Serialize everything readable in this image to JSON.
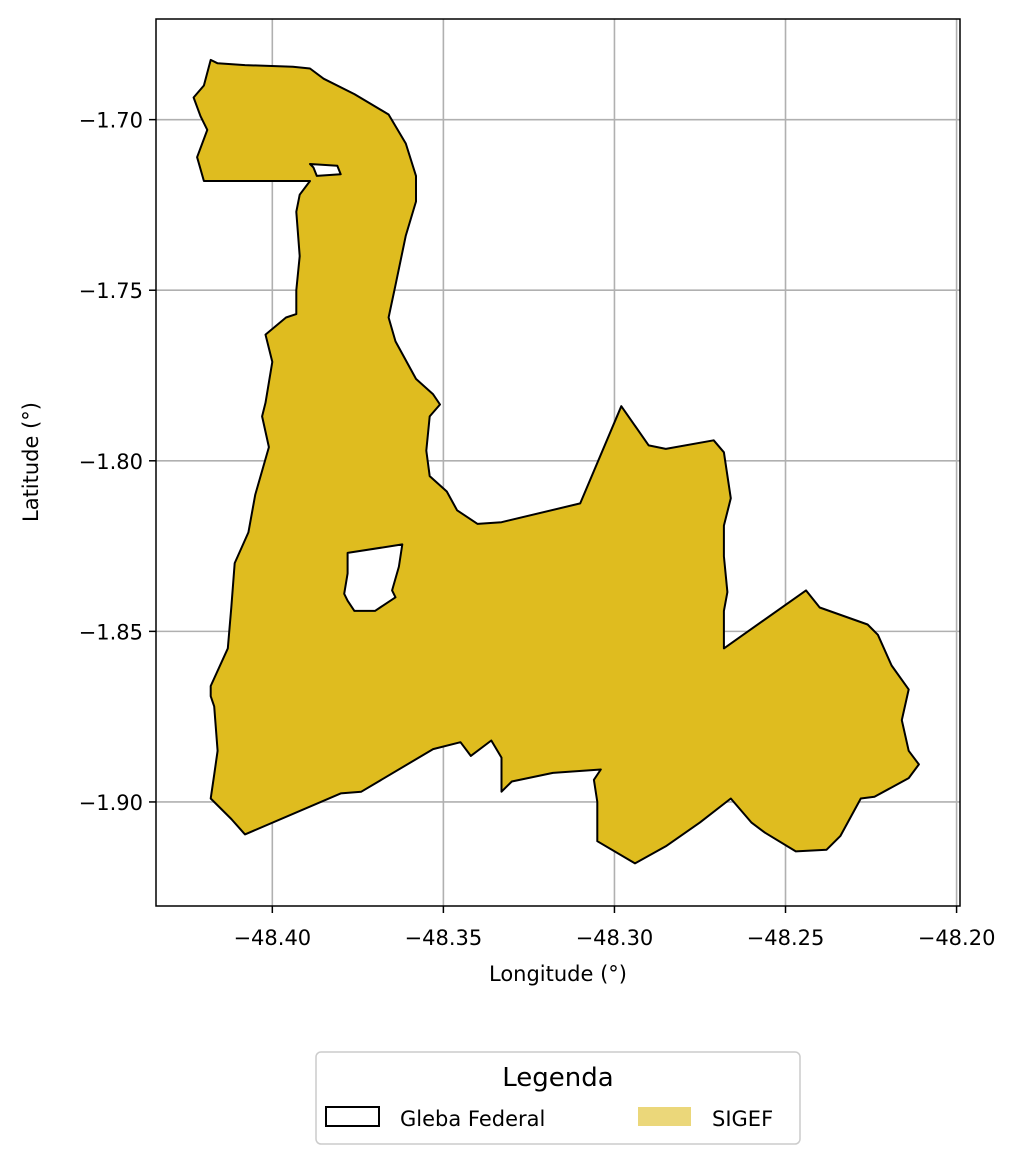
{
  "chart_data": {
    "type": "map",
    "xlabel": "Longitude (°)",
    "ylabel": "Latitude (°)",
    "xlim": [
      -48.434,
      -48.199
    ],
    "ylim": [
      -1.9305,
      -1.6705
    ],
    "grid": true,
    "x_ticks": [
      {
        "value": -48.4,
        "label": "−48.40"
      },
      {
        "value": -48.35,
        "label": "−48.35"
      },
      {
        "value": -48.3,
        "label": "−48.30"
      },
      {
        "value": -48.25,
        "label": "−48.25"
      },
      {
        "value": -48.2,
        "label": "−48.20"
      }
    ],
    "y_ticks": [
      {
        "value": -1.7,
        "label": "−1.70"
      },
      {
        "value": -1.75,
        "label": "−1.75"
      },
      {
        "value": -1.8,
        "label": "−1.80"
      },
      {
        "value": -1.85,
        "label": "−1.85"
      },
      {
        "value": -1.9,
        "label": "−1.90"
      }
    ],
    "legend": {
      "title": "Legenda",
      "placement": "bottom-center",
      "entries": [
        {
          "label": "Gleba Federal",
          "style": "outline",
          "edge_color": "#000000",
          "fill_color": "#ffffff"
        },
        {
          "label": "SIGEF",
          "style": "fill",
          "fill_color": "#ebd77a"
        }
      ]
    },
    "layers": [
      {
        "name": "SIGEF",
        "fill_color": "#dfbc1f",
        "edge_color": "#000000",
        "outer": [
          [
            -48.418,
            -1.6825
          ],
          [
            -48.416,
            -1.6835
          ],
          [
            -48.408,
            -1.684
          ],
          [
            -48.394,
            -1.6845
          ],
          [
            -48.389,
            -1.685
          ],
          [
            -48.385,
            -1.688
          ],
          [
            -48.376,
            -1.6925
          ],
          [
            -48.366,
            -1.6985
          ],
          [
            -48.361,
            -1.707
          ],
          [
            -48.358,
            -1.7165
          ],
          [
            -48.358,
            -1.724
          ],
          [
            -48.361,
            -1.734
          ],
          [
            -48.364,
            -1.7485
          ],
          [
            -48.366,
            -1.758
          ],
          [
            -48.364,
            -1.765
          ],
          [
            -48.358,
            -1.776
          ],
          [
            -48.353,
            -1.7805
          ],
          [
            -48.351,
            -1.7835
          ],
          [
            -48.354,
            -1.787
          ],
          [
            -48.355,
            -1.797
          ],
          [
            -48.354,
            -1.8045
          ],
          [
            -48.349,
            -1.809
          ],
          [
            -48.346,
            -1.8145
          ],
          [
            -48.34,
            -1.8185
          ],
          [
            -48.333,
            -1.818
          ],
          [
            -48.31,
            -1.8125
          ],
          [
            -48.298,
            -1.784
          ],
          [
            -48.29,
            -1.7955
          ],
          [
            -48.285,
            -1.7965
          ],
          [
            -48.271,
            -1.794
          ],
          [
            -48.268,
            -1.7975
          ],
          [
            -48.266,
            -1.811
          ],
          [
            -48.268,
            -1.819
          ],
          [
            -48.268,
            -1.828
          ],
          [
            -48.267,
            -1.8385
          ],
          [
            -48.268,
            -1.844
          ],
          [
            -48.268,
            -1.855
          ],
          [
            -48.244,
            -1.838
          ],
          [
            -48.24,
            -1.843
          ],
          [
            -48.226,
            -1.848
          ],
          [
            -48.223,
            -1.851
          ],
          [
            -48.219,
            -1.86
          ],
          [
            -48.214,
            -1.867
          ],
          [
            -48.216,
            -1.876
          ],
          [
            -48.214,
            -1.885
          ],
          [
            -48.211,
            -1.889
          ],
          [
            -48.214,
            -1.893
          ],
          [
            -48.224,
            -1.8985
          ],
          [
            -48.228,
            -1.899
          ],
          [
            -48.234,
            -1.91
          ],
          [
            -48.238,
            -1.914
          ],
          [
            -48.247,
            -1.9145
          ],
          [
            -48.256,
            -1.909
          ],
          [
            -48.26,
            -1.906
          ],
          [
            -48.266,
            -1.899
          ],
          [
            -48.275,
            -1.906
          ],
          [
            -48.285,
            -1.913
          ],
          [
            -48.294,
            -1.918
          ],
          [
            -48.305,
            -1.9115
          ],
          [
            -48.305,
            -1.9
          ],
          [
            -48.306,
            -1.8935
          ],
          [
            -48.304,
            -1.8905
          ],
          [
            -48.318,
            -1.8915
          ],
          [
            -48.33,
            -1.894
          ],
          [
            -48.333,
            -1.897
          ],
          [
            -48.333,
            -1.887
          ],
          [
            -48.336,
            -1.882
          ],
          [
            -48.342,
            -1.8865
          ],
          [
            -48.345,
            -1.8825
          ],
          [
            -48.353,
            -1.8845
          ],
          [
            -48.374,
            -1.897
          ],
          [
            -48.38,
            -1.8975
          ],
          [
            -48.408,
            -1.9095
          ],
          [
            -48.412,
            -1.905
          ],
          [
            -48.418,
            -1.899
          ],
          [
            -48.417,
            -1.892
          ],
          [
            -48.416,
            -1.885
          ],
          [
            -48.417,
            -1.872
          ],
          [
            -48.418,
            -1.869
          ],
          [
            -48.418,
            -1.866
          ],
          [
            -48.413,
            -1.855
          ],
          [
            -48.412,
            -1.843
          ],
          [
            -48.411,
            -1.83
          ],
          [
            -48.407,
            -1.821
          ],
          [
            -48.405,
            -1.81
          ],
          [
            -48.401,
            -1.796
          ],
          [
            -48.403,
            -1.787
          ],
          [
            -48.402,
            -1.783
          ],
          [
            -48.4,
            -1.771
          ],
          [
            -48.402,
            -1.763
          ],
          [
            -48.396,
            -1.758
          ],
          [
            -48.393,
            -1.757
          ],
          [
            -48.393,
            -1.75
          ],
          [
            -48.392,
            -1.74
          ],
          [
            -48.393,
            -1.727
          ],
          [
            -48.392,
            -1.722
          ],
          [
            -48.389,
            -1.718
          ],
          [
            -48.42,
            -1.718
          ],
          [
            -48.422,
            -1.711
          ],
          [
            -48.419,
            -1.703
          ],
          [
            -48.421,
            -1.699
          ],
          [
            -48.423,
            -1.6935
          ],
          [
            -48.42,
            -1.69
          ]
        ],
        "holes": [
          [
            [
              -48.388,
              -1.714
            ],
            [
              -48.389,
              -1.713
            ],
            [
              -48.381,
              -1.7135
            ],
            [
              -48.38,
              -1.716
            ],
            [
              -48.387,
              -1.7165
            ]
          ],
          [
            [
              -48.378,
              -1.827
            ],
            [
              -48.362,
              -1.8245
            ],
            [
              -48.363,
              -1.831
            ],
            [
              -48.365,
              -1.838
            ],
            [
              -48.364,
              -1.84
            ],
            [
              -48.37,
              -1.844
            ],
            [
              -48.376,
              -1.844
            ],
            [
              -48.378,
              -1.841
            ],
            [
              -48.379,
              -1.839
            ],
            [
              -48.378,
              -1.833
            ]
          ]
        ]
      }
    ]
  }
}
